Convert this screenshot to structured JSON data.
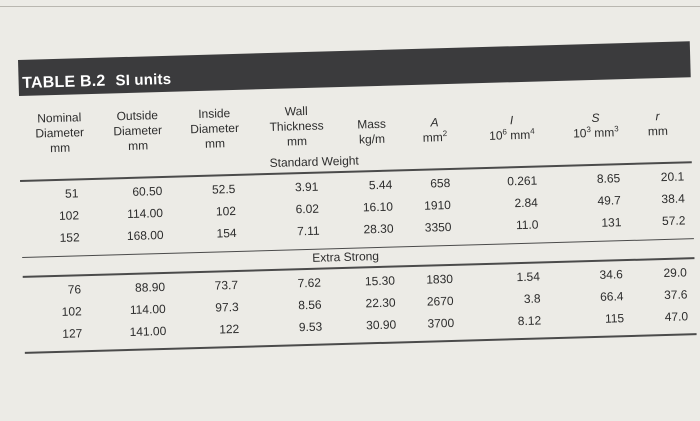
{
  "table": {
    "number": "TABLE B.2",
    "subtitle": "SI units",
    "headers": [
      {
        "line1": "Nominal",
        "line2": "Diameter",
        "line3": "mm"
      },
      {
        "line1": "Outside",
        "line2": "Diameter",
        "line3": "mm"
      },
      {
        "line1": "Inside",
        "line2": "Diameter",
        "line3": "mm"
      },
      {
        "line1": "Wall",
        "line2": "Thickness",
        "line3": "mm"
      },
      {
        "line1": "",
        "line2": "Mass",
        "line3": "kg/m"
      },
      {
        "line1": "",
        "line2": "A",
        "line3": "mm",
        "sup": "2"
      },
      {
        "line1": "",
        "line2": "I",
        "line3": "10",
        "sup": "6",
        "tail": " mm",
        "sup2": "4"
      },
      {
        "line1": "",
        "line2": "S",
        "line3": "10",
        "sup": "3",
        "tail": " mm",
        "sup2": "3"
      },
      {
        "line1": "",
        "line2": "r",
        "line3": "mm"
      }
    ],
    "sections": [
      {
        "label": "Standard Weight",
        "rows": [
          [
            "51",
            "60.50",
            "52.5",
            "3.91",
            "5.44",
            "658",
            "0.261",
            "8.65",
            "20.1"
          ],
          [
            "102",
            "114.00",
            "102",
            "6.02",
            "16.10",
            "1910",
            "2.84",
            "49.7",
            "38.4"
          ],
          [
            "152",
            "168.00",
            "154",
            "7.11",
            "28.30",
            "3350",
            "11.0",
            "131",
            "57.2"
          ]
        ]
      },
      {
        "label": "Extra Strong",
        "rows": [
          [
            "76",
            "88.90",
            "73.7",
            "7.62",
            "15.30",
            "1830",
            "1.54",
            "34.6",
            "29.0"
          ],
          [
            "102",
            "114.00",
            "97.3",
            "8.56",
            "22.30",
            "2670",
            "3.8",
            "66.4",
            "37.6"
          ],
          [
            "127",
            "141.00",
            "122",
            "9.53",
            "30.90",
            "3700",
            "8.12",
            "115",
            "47.0"
          ]
        ]
      }
    ]
  }
}
